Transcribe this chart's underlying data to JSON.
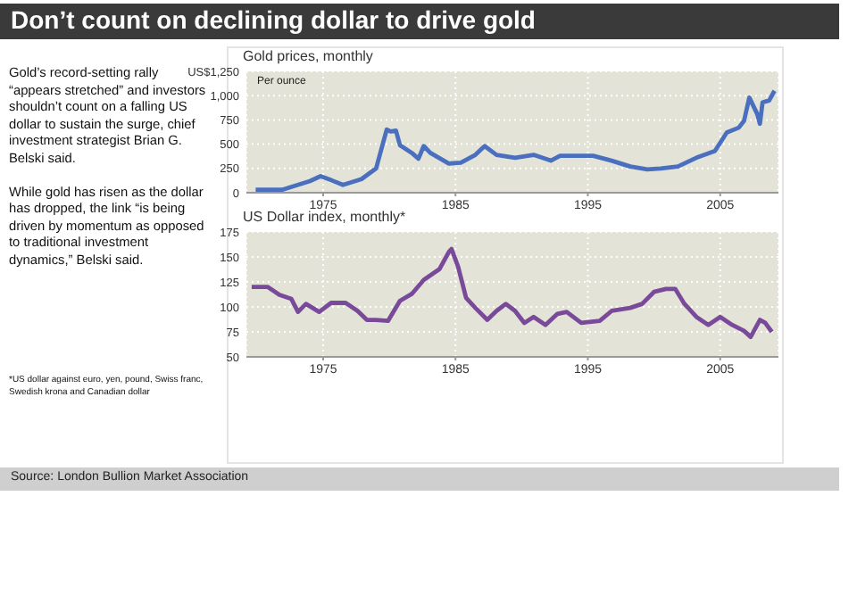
{
  "chart_data": [
    {
      "type": "line",
      "title": "Don’t count on declining dollar to drive gold",
      "subtitle": "Gold prices, monthly",
      "ylabel": "Per ounce",
      "annotations": [
        "Gold’s record-setting rally “appears stretched” and investors shouldn’t count on a falling US dollar to sustain the surge, chief investment strategist Brian G. Belski said.",
        "While gold has risen as the dollar has dropped, the link “is being driven by momentum as opposed to traditional investment dynamics,” Belski said.",
        "Source: London Bullion Market Association"
      ],
      "xlim": [
        1969.2,
        2009.4
      ],
      "xticks": [
        1975,
        1985,
        1995,
        2005
      ],
      "ylim": [
        0,
        1250
      ],
      "yticks": [
        0,
        250,
        500,
        750,
        {
          "value": 1000,
          "label": "1,000"
        },
        {
          "value": 1250,
          "label": "US$1,250"
        }
      ],
      "grid": true,
      "series": [
        {
          "color": "#4a6fbf",
          "x": [
            1969.9,
            1971.9,
            1972.6,
            1974.0,
            1974.8,
            1975.6,
            1976.5,
            1977.9,
            1979.0,
            1979.5,
            1979.8,
            1980.1,
            1980.5,
            1980.8,
            1981.7,
            1982.2,
            1982.6,
            1983.1,
            1984.5,
            1985.4,
            1986.5,
            1987.2,
            1988.1,
            1989.5,
            1990.9,
            1992.2,
            1992.9,
            1995.4,
            1996.8,
            1998.2,
            1999.5,
            2000.5,
            2001.8,
            2003.2,
            2004.6,
            2005.5,
            2006.4,
            2006.8,
            2007.2,
            2007.8,
            2008.0,
            2008.2,
            2008.7,
            2009.1
          ],
          "values": [
            30,
            30,
            60,
            120,
            170,
            130,
            80,
            140,
            250,
            500,
            650,
            630,
            640,
            490,
            410,
            350,
            480,
            410,
            300,
            310,
            390,
            480,
            390,
            360,
            390,
            330,
            380,
            380,
            330,
            270,
            240,
            250,
            270,
            360,
            430,
            620,
            670,
            740,
            980,
            810,
            710,
            930,
            950,
            1050
          ]
        }
      ]
    },
    {
      "type": "line",
      "subtitle": "US Dollar index, monthly*",
      "annotations": [
        "*US dollar against euro, yen, pound, Swiss franc, Swedish krona and Canadian dollar"
      ],
      "xlim": [
        1969.2,
        2009.4
      ],
      "xticks": [
        1975,
        1985,
        1995,
        2005
      ],
      "ylim": [
        50,
        175
      ],
      "yticks": [
        50,
        75,
        100,
        125,
        150,
        175
      ],
      "grid": true,
      "series": [
        {
          "color": "#7a4a9a",
          "x": [
            1969.6,
            1970.8,
            1971.7,
            1972.6,
            1973.1,
            1973.7,
            1974.7,
            1975.6,
            1976.7,
            1977.6,
            1978.3,
            1979.0,
            1979.9,
            1980.8,
            1981.7,
            1982.6,
            1983.8,
            1984.5,
            1984.7,
            1985.2,
            1985.8,
            1986.5,
            1987.4,
            1988.1,
            1988.8,
            1989.5,
            1990.2,
            1990.9,
            1991.8,
            1992.7,
            1993.4,
            1994.5,
            1995.9,
            1996.8,
            1998.2,
            1999.1,
            2000.0,
            2000.9,
            2001.6,
            2002.3,
            2003.2,
            2004.1,
            2005.0,
            2005.9,
            2006.8,
            2007.3,
            2008.0,
            2008.4,
            2008.9
          ],
          "values": [
            120,
            120,
            112,
            108,
            95,
            103,
            95,
            104,
            104,
            96,
            87,
            87,
            86,
            106,
            113,
            127,
            138,
            155,
            158,
            140,
            109,
            99,
            87,
            96,
            103,
            96,
            84,
            90,
            82,
            93,
            95,
            84,
            86,
            96,
            99,
            103,
            115,
            118,
            118,
            103,
            90,
            82,
            90,
            82,
            76,
            70,
            87,
            84,
            75
          ]
        }
      ]
    }
  ]
}
